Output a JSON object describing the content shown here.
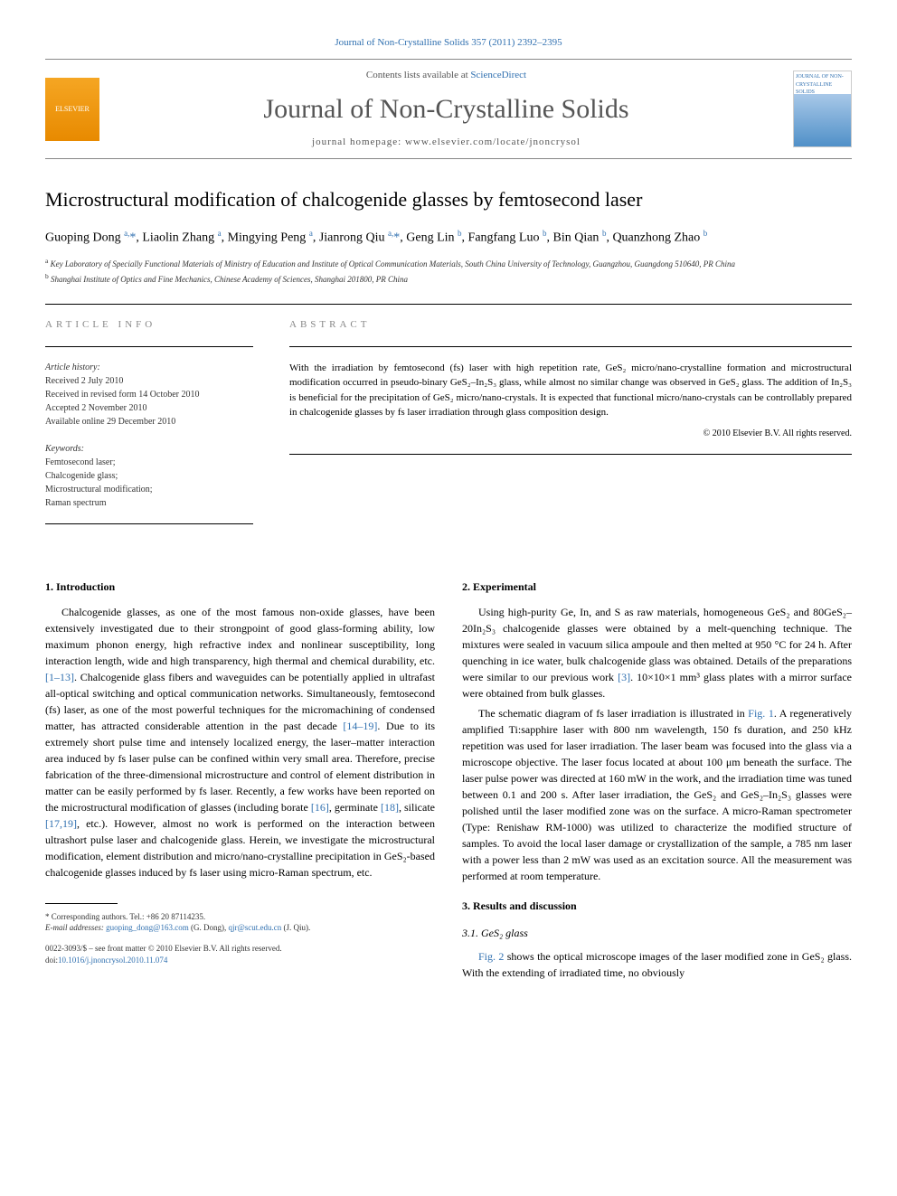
{
  "header": {
    "citation": "Journal of Non-Crystalline Solids 357 (2011) 2392–2395",
    "contents_prefix": "Contents lists available at ",
    "contents_link": "ScienceDirect",
    "journal_name": "Journal of Non-Crystalline Solids",
    "homepage_prefix": "journal homepage: ",
    "homepage_url": "www.elsevier.com/locate/jnoncrysol",
    "elsevier_text": "ELSEVIER",
    "cover_text": "JOURNAL OF NON-CRYSTALLINE SOLIDS"
  },
  "article": {
    "title": "Microstructural modification of chalcogenide glasses by femtosecond laser",
    "authors_html": "Guoping Dong <sup>a,</sup><span class='asterisk'>*</span>, Liaolin Zhang <sup>a</sup>, Mingying Peng <sup>a</sup>, Jianrong Qiu <sup>a,</sup><span class='asterisk'>*</span>, Geng Lin <sup>b</sup>, Fangfang Luo <sup>b</sup>, Bin Qian <sup>b</sup>, Quanzhong Zhao <sup>b</sup>",
    "affiliations": [
      {
        "sup": "a",
        "text": "Key Laboratory of Specially Functional Materials of Ministry of Education and Institute of Optical Communication Materials, South China University of Technology, Guangzhou, Guangdong 510640, PR China"
      },
      {
        "sup": "b",
        "text": "Shanghai Institute of Optics and Fine Mechanics, Chinese Academy of Sciences, Shanghai 201800, PR China"
      }
    ]
  },
  "article_info": {
    "heading": "ARTICLE INFO",
    "history_label": "Article history:",
    "history": [
      "Received 2 July 2010",
      "Received in revised form 14 October 2010",
      "Accepted 2 November 2010",
      "Available online 29 December 2010"
    ],
    "keywords_label": "Keywords:",
    "keywords": [
      "Femtosecond laser;",
      "Chalcogenide glass;",
      "Microstructural modification;",
      "Raman spectrum"
    ]
  },
  "abstract": {
    "heading": "ABSTRACT",
    "text": "With the irradiation by femtosecond (fs) laser with high repetition rate, GeS₂ micro/nano-crystalline formation and microstructural modification occurred in pseudo-binary GeS₂–In₂S₃ glass, while almost no similar change was observed in GeS₂ glass. The addition of In₂S₃ is beneficial for the precipitation of GeS₂ micro/nano-crystals. It is expected that functional micro/nano-crystals can be controllably prepared in chalcogenide glasses by fs laser irradiation through glass composition design.",
    "copyright": "© 2010 Elsevier B.V. All rights reserved."
  },
  "sections": {
    "intro_heading": "1. Introduction",
    "intro_p1": "Chalcogenide glasses, as one of the most famous non-oxide glasses, have been extensively investigated due to their strongpoint of good glass-forming ability, low maximum phonon energy, high refractive index and nonlinear susceptibility, long interaction length, wide and high transparency, high thermal and chemical durability, etc. ",
    "intro_ref1": "[1–13]",
    "intro_p1b": ". Chalcogenide glass fibers and waveguides can be potentially applied in ultrafast all-optical switching and optical communication networks. Simultaneously, femtosecond (fs) laser, as one of the most powerful techniques for the micromachining of condensed matter, has attracted considerable attention in the past decade ",
    "intro_ref2": "[14–19]",
    "intro_p1c": ". Due to its extremely short pulse time and intensely localized energy, the laser–matter interaction area induced by fs laser pulse can be confined within very small area. Therefore, precise fabrication of the three-dimensional microstructure and control of element distribution in matter can be easily performed by fs laser. Recently, a few works have been reported on the microstructural modification of glasses (including borate ",
    "intro_ref3": "[16]",
    "intro_p1d": ", germinate ",
    "intro_ref4": "[18]",
    "intro_p1e": ", silicate ",
    "intro_ref5": "[17,19]",
    "intro_p1f": ", etc.). However, almost no work is performed on the interaction between ultrashort pulse laser and chalcogenide glass. Herein, we investigate the microstructural modification, element distribution and micro/nano-crystalline precipitation in GeS₂-based chalcogenide glasses induced by fs laser using micro-Raman spectrum, etc.",
    "exp_heading": "2. Experimental",
    "exp_p1a": "Using high-purity Ge, In, and S as raw materials, homogeneous GeS₂ and 80GeS₂–20In₂S₃ chalcogenide glasses were obtained by a melt-quenching technique. The mixtures were sealed in vacuum silica ampoule and then melted at 950 °C for 24 h. After quenching in ice water, bulk chalcogenide glass was obtained. Details of the preparations were similar to our previous work ",
    "exp_ref1": "[3]",
    "exp_p1b": ". 10×10×1 mm³ glass plates with a mirror surface were obtained from bulk glasses.",
    "exp_p2a": "The schematic diagram of fs laser irradiation is illustrated in ",
    "exp_fig1": "Fig. 1",
    "exp_p2b": ". A regeneratively amplified Ti:sapphire laser with 800 nm wavelength, 150 fs duration, and 250 kHz repetition was used for laser irradiation. The laser beam was focused into the glass via a microscope objective. The laser focus located at about 100 μm beneath the surface. The laser pulse power was directed at 160 mW in the work, and the irradiation time was tuned between 0.1 and 200 s. After laser irradiation, the GeS₂ and GeS₂–In₂S₃ glasses were polished until the laser modified zone was on the surface. A micro-Raman spectrometer (Type: Renishaw RM-1000) was utilized to characterize the modified structure of samples. To avoid the local laser damage or crystallization of the sample, a 785 nm laser with a power less than 2 mW was used as an excitation source. All the measurement was performed at room temperature.",
    "results_heading": "3. Results and discussion",
    "sub31_heading": "3.1. GeS₂ glass",
    "results_p1a": "",
    "results_fig2": "Fig. 2",
    "results_p1b": " shows the optical microscope images of the laser modified zone in GeS₂ glass. With the extending of irradiated time, no obviously"
  },
  "footnotes": {
    "corresponding": "* Corresponding authors. Tel.: +86 20 87114235.",
    "email_label": "E-mail addresses: ",
    "email1": "guoping_dong@163.com",
    "email1_name": " (G. Dong), ",
    "email2": "qjr@scut.edu.cn",
    "email2_name": " (J. Qiu)."
  },
  "footer": {
    "line1": "0022-3093/$ – see front matter © 2010 Elsevier B.V. All rights reserved.",
    "doi_prefix": "doi:",
    "doi": "10.1016/j.jnoncrysol.2010.11.074"
  },
  "colors": {
    "link": "#3070b0",
    "text": "#000000",
    "muted": "#888888",
    "background": "#ffffff"
  }
}
